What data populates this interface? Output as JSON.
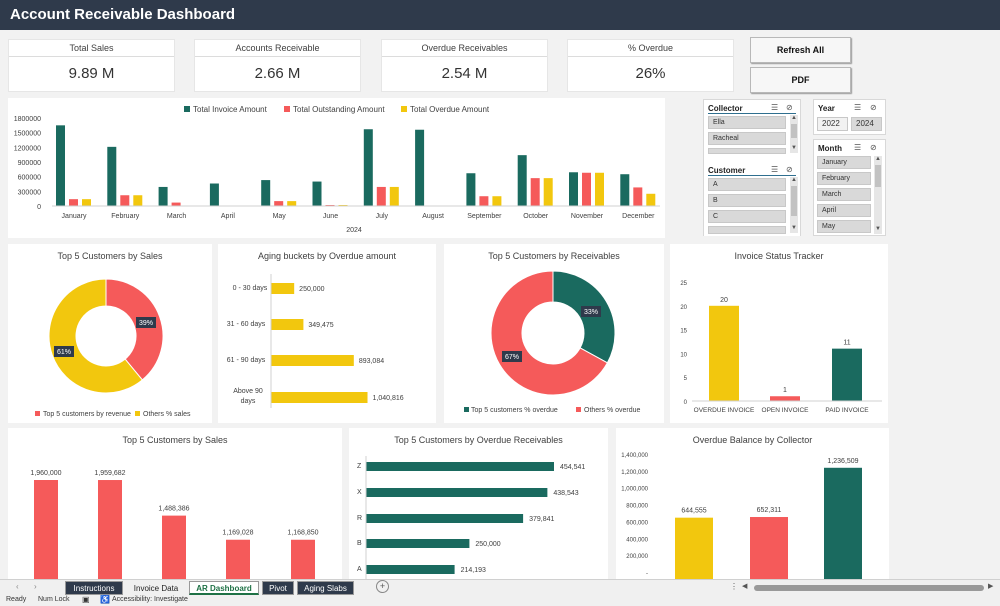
{
  "title": "Account Receivable Dashboard",
  "kpis": [
    {
      "label": "Total Sales",
      "value": "9.89 M"
    },
    {
      "label": "Accounts Receivable",
      "value": "2.66 M"
    },
    {
      "label": "Overdue Receivables",
      "value": "2.54 M"
    },
    {
      "label": "% Overdue",
      "value": "26%"
    }
  ],
  "buttons": {
    "refresh": "Refresh All",
    "pdf": "PDF"
  },
  "colors": {
    "teal": "#1a6a5f",
    "red": "#f55a5a",
    "yellow": "#f2c70e",
    "header": "#2f3a4b"
  },
  "monthly_chart": {
    "legend": [
      "Total Invoice Amount",
      "Total Outstanding Amount",
      "Total Overdue Amount"
    ],
    "year_label": "2024",
    "y_ticks": [
      "1800000",
      "1500000",
      "1200000",
      "900000",
      "600000",
      "300000",
      "0"
    ],
    "chart_data": {
      "type": "bar",
      "categories": [
        "January",
        "February",
        "March",
        "April",
        "May",
        "June",
        "July",
        "August",
        "September",
        "October",
        "November",
        "December"
      ],
      "series": [
        {
          "name": "Total Invoice Amount",
          "values": [
            1650000,
            1210000,
            390000,
            460000,
            530000,
            500000,
            1570000,
            1560000,
            670000,
            1040000,
            690000,
            650000
          ]
        },
        {
          "name": "Total Outstanding Amount",
          "values": [
            140000,
            220000,
            70000,
            0,
            100000,
            20000,
            390000,
            0,
            200000,
            570000,
            680000,
            380000
          ]
        },
        {
          "name": "Total Overdue Amount",
          "values": [
            140000,
            220000,
            0,
            0,
            100000,
            20000,
            390000,
            0,
            200000,
            570000,
            680000,
            250000
          ]
        }
      ],
      "ylim": [
        0,
        1800000
      ]
    }
  },
  "slicers": {
    "collector": {
      "title": "Collector",
      "items": [
        "Ella",
        "Racheal",
        ""
      ]
    },
    "year": {
      "title": "Year",
      "items": [
        "2022",
        "2024"
      ]
    },
    "customer": {
      "title": "Customer",
      "items": [
        "A",
        "B",
        "C",
        ""
      ]
    },
    "month": {
      "title": "Month",
      "items": [
        "January",
        "February",
        "March",
        "April",
        "May"
      ]
    }
  },
  "pie_sales": {
    "title": "Top 5 Customers by Sales",
    "chart_data": {
      "type": "pie",
      "labels": [
        "Top 5 customers by revenue",
        "Others % sales"
      ],
      "values": [
        39,
        61
      ]
    },
    "slice_labels": [
      "39%",
      "61%"
    ],
    "legend": [
      "Top 5 customers by revenue",
      "Others % sales"
    ]
  },
  "aging": {
    "title": "Aging buckets by Overdue amount",
    "chart_data": {
      "type": "bar",
      "categories": [
        "0 - 30 days",
        "31 - 60 days",
        "61 - 90 days",
        "Above 90 days"
      ],
      "values": [
        250000,
        349475,
        893084,
        1040816
      ]
    },
    "value_labels": [
      "250,000",
      "349,475",
      "893,084",
      "1,040,816"
    ],
    "cat_labels": [
      "0 - 30 days",
      "31 - 60 days",
      "61 - 90 days",
      "Above 90",
      "days"
    ]
  },
  "pie_recv": {
    "title": "Top 5 Customers by Receivables",
    "chart_data": {
      "type": "pie",
      "labels": [
        "Top 5 customers % overdue",
        "Others % overdue"
      ],
      "values": [
        33,
        67
      ]
    },
    "slice_labels": [
      "33%",
      "67%"
    ],
    "legend": [
      "Top 5 customers % overdue",
      "Others % overdue"
    ]
  },
  "status": {
    "title": "Invoice Status Tracker",
    "chart_data": {
      "type": "bar",
      "categories": [
        "OVERDUE INVOICE",
        "OPEN INVOICE",
        "PAID INVOICE"
      ],
      "values": [
        20,
        1,
        11
      ],
      "ylim": [
        0,
        25
      ]
    },
    "y_ticks": [
      "25",
      "20",
      "15",
      "10",
      "5",
      "0"
    ],
    "value_labels": [
      "20",
      "1",
      "11"
    ]
  },
  "sales_bar": {
    "title": "Top 5 Customers by Sales",
    "chart_data": {
      "type": "bar",
      "values": [
        1960000,
        1959682,
        1488386,
        1169028,
        1168850
      ]
    },
    "value_labels": [
      "1,960,000",
      "1,959,682",
      "1,488,386",
      "1,169,028",
      "1,168,850"
    ]
  },
  "overdue_cust": {
    "title": "Top 5 Customers by Overdue Receivables",
    "chart_data": {
      "type": "bar",
      "categories": [
        "Z",
        "X",
        "R",
        "B",
        "A"
      ],
      "values": [
        454541,
        438543,
        379841,
        250000,
        214193
      ]
    },
    "value_labels": [
      "454,541",
      "438,543",
      "379,841",
      "250,000",
      "214,193"
    ]
  },
  "collector_bal": {
    "title": "Overdue Balance by Collector",
    "chart_data": {
      "type": "bar",
      "values": [
        644555,
        652311,
        1236509
      ],
      "ylim": [
        0,
        1400000
      ]
    },
    "y_ticks": [
      "1,400,000",
      "1,200,000",
      "1,000,000",
      "800,000",
      "600,000",
      "400,000",
      "200,000",
      "-"
    ],
    "value_labels": [
      "644,555",
      "652,311",
      "1,236,509"
    ]
  },
  "sheet_tabs": [
    "Instructions",
    "Invoice Data",
    "AR Dashboard",
    "Pivot",
    "Aging Slabs"
  ],
  "status_bar": {
    "ready": "Ready",
    "numlock": "Num Lock",
    "accessibility": "Accessibility: Investigate"
  }
}
